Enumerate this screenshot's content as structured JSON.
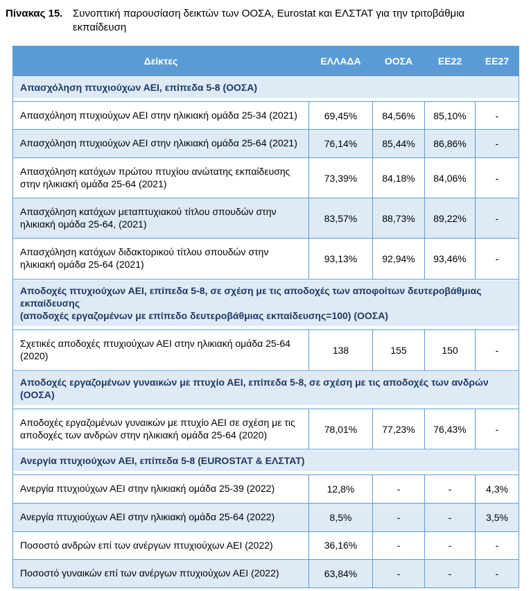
{
  "caption": {
    "label": "Πίνακας 15.",
    "line1": "Συνοπτική παρουσίαση δεικτών των ΟΟΣΑ, Eurostat και ΕΛΣΤΑΤ για την τριτοβάθμια",
    "line2": "εκπαίδευση"
  },
  "table": {
    "columns": [
      "Δείκτες",
      "ΕΛΛΑΔΑ",
      "ΟΟΣΑ",
      "ΕΕ22",
      "ΕΕ27"
    ],
    "column_keys": [
      "indicator",
      "greece",
      "oecd",
      "eu22",
      "eu27"
    ],
    "sections": [
      {
        "header": [
          "Απασχόληση πτυχιούχων ΑΕΙ, επίπεδα 5-8 (ΟΟΣΑ)"
        ],
        "rows": [
          {
            "label": "Απασχόληση πτυχιούχων ΑΕΙ στην ηλικιακή ομάδα 25-34 (2021)",
            "values": [
              "69,45%",
              "84,56%",
              "85,10%",
              "-"
            ]
          },
          {
            "label": "Απασχόληση πτυχιούχων ΑΕΙ στην ηλικιακή ομάδα 25-64 (2021)",
            "values": [
              "76,14%",
              "85,44%",
              "86,86%",
              "-"
            ]
          },
          {
            "label": "Απασχόληση κατόχων πρώτου πτυχίου ανώτατης εκπαίδευσης στην ηλικιακή ομάδα 25-64 (2021)",
            "values": [
              "73,39%",
              "84,18%",
              "84,06%",
              "-"
            ]
          },
          {
            "label": "Απασχόληση κατόχων μεταπτυχιακού τίτλου σπουδών στην ηλικιακή ομάδα 25-64, (2021)",
            "values": [
              "83,57%",
              "88,73%",
              "89,22%",
              "-"
            ]
          },
          {
            "label": "Απασχόληση κατόχων διδακτορικού τίτλου σπουδών στην ηλικιακή ομάδα 25-64 (2021)",
            "values": [
              "93,13%",
              "92,94%",
              "93,46%",
              "-"
            ]
          }
        ]
      },
      {
        "header": [
          "Αποδοχές πτυχιούχων ΑΕΙ, επίπεδα 5-8, σε σχέση με τις αποδοχές των αποφοίτων δευτεροβάθμιας εκπαίδευσης",
          "(αποδοχές εργαζομένων με επίπεδο δευτεροβάθμιας εκπαίδευσης=100) (ΟΟΣΑ)"
        ],
        "rows": [
          {
            "label": "Σχετικές αποδοχές πτυχιούχων ΑΕΙ στην ηλικιακή ομάδα 25-64 (2020)",
            "values": [
              "138",
              "155",
              "150",
              "-"
            ]
          }
        ]
      },
      {
        "header": [
          "Αποδοχές εργαζομένων γυναικών με πτυχίο ΑΕΙ, επίπεδα 5-8, σε σχέση με τις αποδοχές των ανδρών (ΟΟΣΑ)"
        ],
        "rows": [
          {
            "label": "Αποδοχές εργαζομένων γυναικών με πτυχίο ΑΕΙ σε σχέση με τις αποδοχές των ανδρών στην ηλικιακή ομάδα 25-64 (2020)",
            "values": [
              "78,01%",
              "77,23%",
              "76,43%",
              "-"
            ]
          }
        ]
      },
      {
        "header": [
          "Ανεργία πτυχιούχων ΑΕΙ, επίπεδα 5-8 (EUROSTAT & ΕΛΣΤΑΤ)"
        ],
        "rows": [
          {
            "label": "Ανεργία πτυχιούχων ΑΕΙ στην ηλικιακή ομάδα 25-39 (2022)",
            "values": [
              "12,8%",
              "-",
              "-",
              "4,3%"
            ]
          },
          {
            "label": "Ανεργία πτυχιούχων ΑΕΙ στην ηλικιακή ομάδα 25-64 (2022)",
            "values": [
              "8,5%",
              "-",
              "-",
              "3,5%"
            ]
          },
          {
            "label": "Ποσοστό ανδρών επί των ανέργων πτυχιούχων ΑΕΙ (2022)",
            "values": [
              "36,16%",
              "-",
              "-",
              "-"
            ]
          },
          {
            "label": "Ποσοστό γυναικών επί των ανέργων πτυχιούχων ΑΕΙ (2022)",
            "values": [
              "63,84%",
              "-",
              "-",
              "-"
            ]
          }
        ]
      }
    ]
  },
  "colors": {
    "header_bg": "#5b9bd5",
    "header_text": "#ffffff",
    "section_bg": "#deeaf6",
    "section_text": "#1f3864",
    "row_alt_bg": "#deeaf6",
    "border": "#5b9bd5",
    "text": "#000000"
  }
}
